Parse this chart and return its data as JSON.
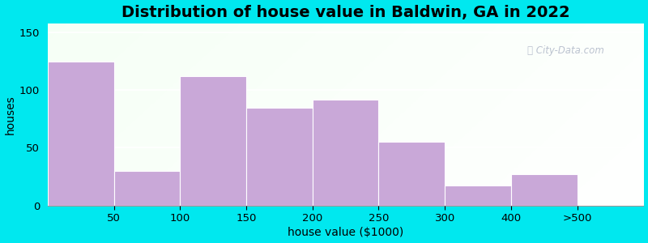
{
  "title": "Distribution of house value in Baldwin, GA in 2022",
  "xlabel": "house value ($1000)",
  "ylabel": "houses",
  "bar_heights": [
    125,
    30,
    112,
    85,
    92,
    55,
    17,
    27
  ],
  "bar_color": "#c9a8d8",
  "background_outer": "#00e8ef",
  "ylim": [
    0,
    158
  ],
  "yticks": [
    0,
    50,
    100,
    150
  ],
  "xlim_left": 0,
  "xlim_right": 9,
  "title_fontsize": 14,
  "axis_fontsize": 10,
  "tick_fontsize": 9.5,
  "watermark": "ⓘ City-Data.com"
}
